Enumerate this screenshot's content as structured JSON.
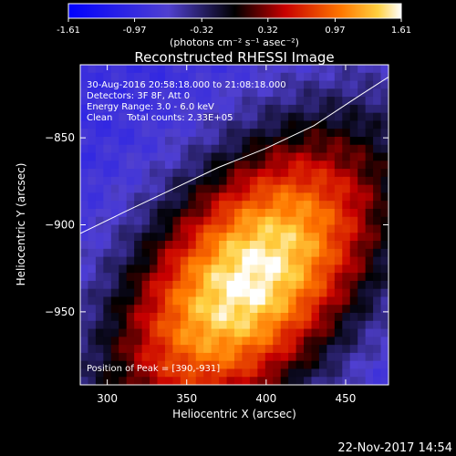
{
  "chart_data": {
    "type": "heatmap",
    "title": "Reconstructed RHESSI Image",
    "xlabel": "Heliocentric X (arcsec)",
    "ylabel": "Heliocentric Y (arcsec)",
    "xlim": [
      283,
      477
    ],
    "ylim": [
      -992,
      -808
    ],
    "x_ticks": [
      300,
      350,
      400,
      450
    ],
    "y_ticks": [
      -850,
      -900,
      -950
    ],
    "colorbar": {
      "min": -1.61,
      "max": 1.61,
      "ticks": [
        "-1.61",
        "-0.97",
        "-0.32",
        "0.32",
        "0.97",
        "1.61"
      ],
      "tick_values": [
        -1.61,
        -0.97,
        -0.32,
        0.32,
        0.97,
        1.61
      ],
      "label": "(photons cm⁻² s⁻¹ asec⁻²)"
    },
    "annotations": [
      "30-Aug-2016 20:58:18.000 to 21:08:18.000",
      "Detectors: 3F 8F, Att 0",
      "Energy Range: 3.0 - 6.0 keV",
      "Clean     Total counts: 2.33E+05"
    ],
    "peak": {
      "x": 390,
      "y": -931,
      "label": "Position of Peak = [390,-931]"
    },
    "limb_curve": {
      "x": [
        283,
        310,
        340,
        370,
        400,
        430,
        460,
        477
      ],
      "y": [
        -905,
        -893,
        -880,
        -867,
        -856,
        -843,
        -825,
        -815
      ]
    }
  },
  "footer": {
    "timestamp": "22-Nov-2017 14:54"
  },
  "colors": {
    "background": "#000000",
    "text": "#ffffff",
    "limb": "#ffffff"
  }
}
